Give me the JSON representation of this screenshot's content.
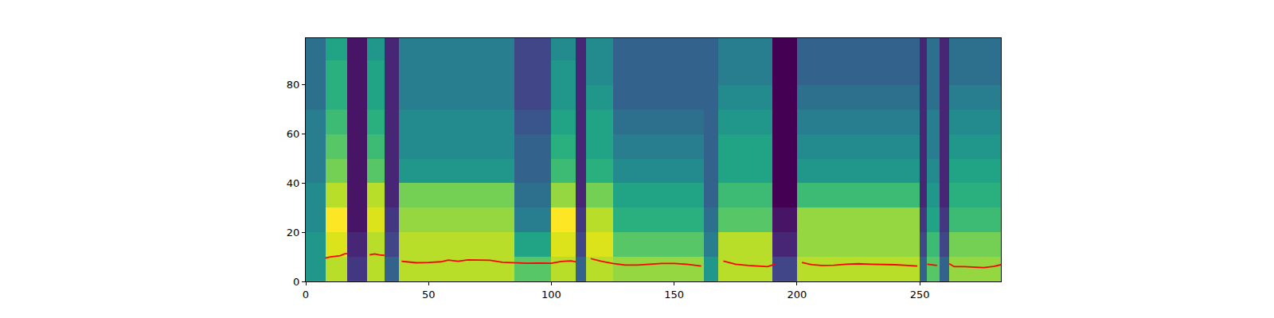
{
  "chart_data": {
    "type": "heatmap",
    "color": "Viridis",
    "x": [
      0,
      8,
      17,
      25,
      32,
      38,
      85,
      100,
      110,
      114,
      125,
      162,
      168,
      190,
      200,
      250,
      253,
      258,
      262,
      283
    ],
    "y": [
      0,
      10,
      20,
      30,
      40,
      50,
      60,
      70,
      80,
      90,
      100
    ],
    "cells": [
      [
        0.5,
        0.85,
        0.15,
        0.85,
        0.3,
        0.85,
        0.7,
        0.85,
        0.3,
        0.85,
        0.8,
        0.5,
        0.85,
        0.2,
        0.85,
        0.3,
        0.7,
        0.3,
        0.8
      ],
      [
        0.5,
        0.9,
        0.1,
        0.85,
        0.2,
        0.85,
        0.55,
        0.9,
        0.2,
        0.9,
        0.7,
        0.4,
        0.85,
        0.1,
        0.8,
        0.2,
        0.65,
        0.2,
        0.75
      ],
      [
        0.45,
        0.95,
        0.05,
        0.9,
        0.15,
        0.8,
        0.4,
        0.95,
        0.15,
        0.85,
        0.6,
        0.35,
        0.7,
        0.05,
        0.8,
        0.15,
        0.55,
        0.15,
        0.65
      ],
      [
        0.45,
        0.85,
        0.05,
        0.85,
        0.1,
        0.75,
        0.35,
        0.8,
        0.1,
        0.75,
        0.55,
        0.3,
        0.65,
        0,
        0.65,
        0.1,
        0.5,
        0.1,
        0.6
      ],
      [
        0.4,
        0.75,
        0.05,
        0.7,
        0.1,
        0.5,
        0.3,
        0.65,
        0.1,
        0.6,
        0.45,
        0.3,
        0.55,
        0,
        0.5,
        0.1,
        0.45,
        0.1,
        0.55
      ],
      [
        0.4,
        0.7,
        0.05,
        0.65,
        0.1,
        0.45,
        0.3,
        0.6,
        0.1,
        0.55,
        0.4,
        0.3,
        0.55,
        0,
        0.45,
        0.1,
        0.4,
        0.1,
        0.5
      ],
      [
        0.4,
        0.65,
        0.05,
        0.6,
        0.1,
        0.45,
        0.25,
        0.55,
        0.1,
        0.55,
        0.35,
        0.3,
        0.5,
        0,
        0.4,
        0.1,
        0.4,
        0.1,
        0.45
      ],
      [
        0.35,
        0.6,
        0.05,
        0.55,
        0.1,
        0.4,
        0.2,
        0.5,
        0.1,
        0.5,
        0.3,
        0.3,
        0.45,
        0,
        0.35,
        0.1,
        0.35,
        0.1,
        0.4
      ],
      [
        0.35,
        0.6,
        0.05,
        0.55,
        0.1,
        0.4,
        0.2,
        0.5,
        0.1,
        0.45,
        0.3,
        0.3,
        0.4,
        0,
        0.3,
        0.1,
        0.35,
        0.1,
        0.35
      ],
      [
        0.35,
        0.55,
        0.05,
        0.5,
        0.1,
        0.4,
        0.2,
        0.45,
        0.1,
        0.45,
        0.3,
        0.3,
        0.4,
        0,
        0.3,
        0.1,
        0.35,
        0.1,
        0.35
      ]
    ],
    "series": [
      {
        "type": "line",
        "color": "red",
        "x": [
          8,
          10,
          12,
          14,
          16,
          17,
          20,
          26,
          28,
          30,
          32,
          35,
          39,
          45,
          50,
          55,
          58,
          62,
          66,
          70,
          75,
          80,
          85,
          90,
          95,
          100,
          104,
          108,
          110,
          113,
          116,
          120,
          125,
          130,
          135,
          140,
          145,
          150,
          155,
          161,
          165,
          170,
          175,
          180,
          185,
          188,
          191,
          196,
          202,
          206,
          210,
          215,
          220,
          225,
          230,
          235,
          240,
          245,
          249,
          251,
          253,
          255,
          257,
          260,
          262,
          264,
          268,
          272,
          276,
          280,
          283
        ],
        "values": [
          9.5,
          10,
          10.2,
          10.5,
          11.3,
          11.3,
          null,
          10.8,
          11.2,
          10.8,
          10.6,
          null,
          8.2,
          7.6,
          7.7,
          8,
          8.7,
          8.2,
          8.8,
          8.7,
          8.6,
          7.8,
          7.5,
          7.4,
          7.5,
          7.4,
          8.1,
          8.4,
          8,
          null,
          9.3,
          8.3,
          7.3,
          6.7,
          6.7,
          7,
          7.3,
          7.3,
          7,
          6.3,
          null,
          8.3,
          7,
          6.5,
          6.3,
          6,
          7,
          null,
          7.7,
          6.8,
          6.5,
          6.6,
          7,
          7.2,
          7,
          7,
          6.8,
          6.5,
          6.3,
          null,
          7,
          6.7,
          6.5,
          null,
          7.2,
          6,
          6,
          5.8,
          5.6,
          6.1,
          6.8
        ]
      }
    ],
    "xlim": [
      0,
      283
    ],
    "ylim": [
      0,
      99
    ],
    "xticks": [
      0,
      50,
      100,
      150,
      200,
      250
    ],
    "yticks": [
      0,
      20,
      40,
      60,
      80
    ]
  }
}
